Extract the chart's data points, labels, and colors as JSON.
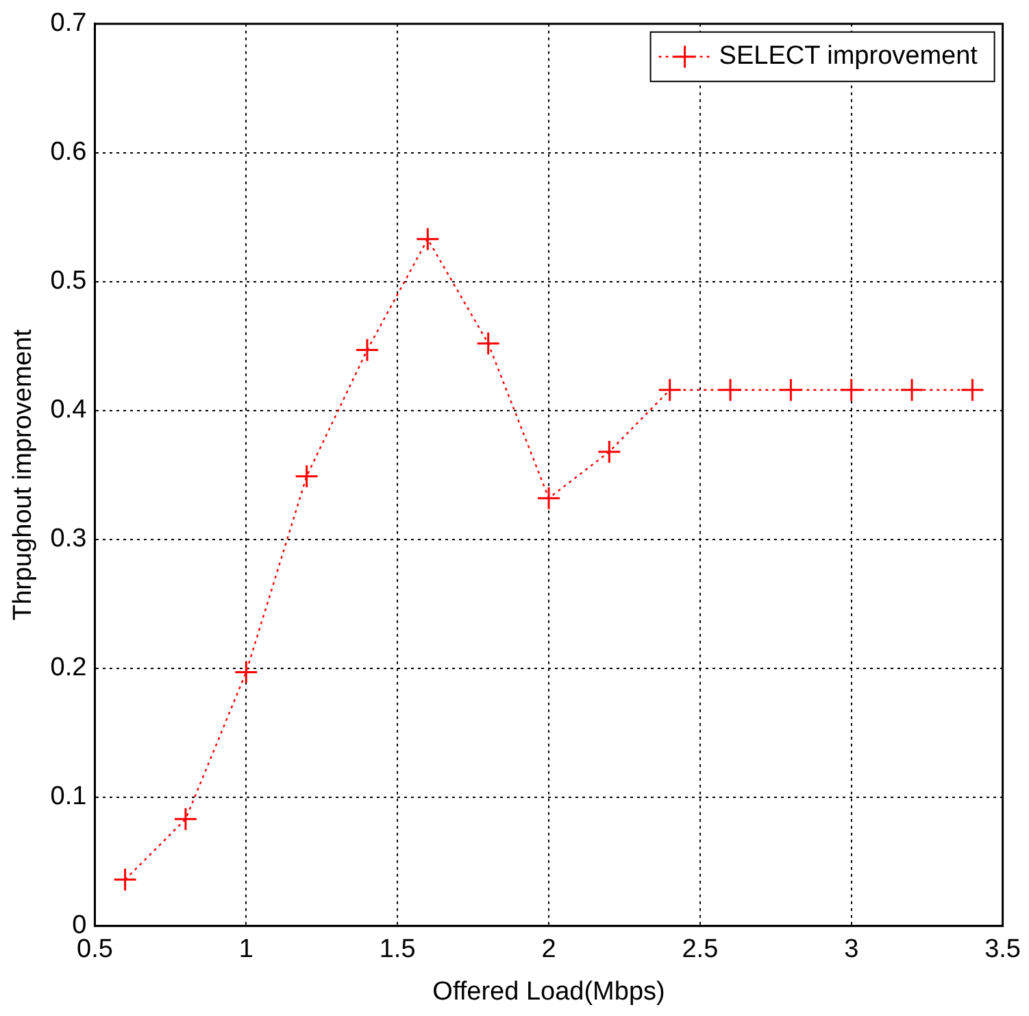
{
  "chart_data": {
    "type": "line",
    "xlabel": "Offered Load(Mbps)",
    "ylabel": "Thrpughout improvement",
    "x": [
      0.6,
      0.8,
      1.0,
      1.2,
      1.4,
      1.6,
      1.8,
      2.0,
      2.2,
      2.4,
      2.6,
      2.8,
      3.0,
      3.2,
      3.4
    ],
    "series": [
      {
        "name": "SELECT improvement",
        "color": "#ff0000",
        "values": [
          0.036,
          0.083,
          0.197,
          0.349,
          0.447,
          0.533,
          0.452,
          0.332,
          0.368,
          0.416,
          0.416,
          0.416,
          0.416,
          0.416,
          0.416
        ]
      }
    ],
    "xlim": [
      0.5,
      3.5
    ],
    "xticks": [
      0.5,
      1,
      1.5,
      2,
      2.5,
      3,
      3.5
    ],
    "ylim": [
      0,
      0.7
    ],
    "yticks": [
      0,
      0.1,
      0.2,
      0.3,
      0.4,
      0.5,
      0.6,
      0.7
    ],
    "grid": true,
    "legend": "top right",
    "marker": "cross",
    "line_style": "dotted"
  }
}
